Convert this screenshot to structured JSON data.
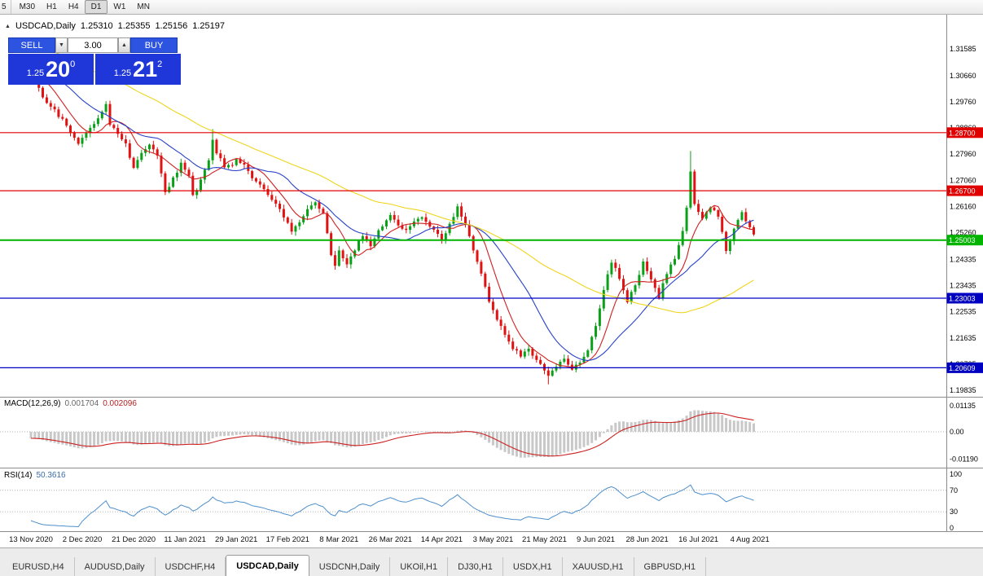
{
  "toolbar": {
    "timeframes": [
      "5",
      "M30",
      "H1",
      "H4",
      "D1",
      "W1",
      "MN"
    ],
    "active": "D1"
  },
  "chart_header": {
    "symbol": "USDCAD,Daily",
    "open": "1.25310",
    "high": "1.25355",
    "low": "1.25156",
    "close": "1.25197"
  },
  "one_click": {
    "sell_label": "SELL",
    "buy_label": "BUY",
    "volume": "3.00",
    "sell": {
      "prefix": "1.25",
      "big": "20",
      "sup": "0"
    },
    "buy": {
      "prefix": "1.25",
      "big": "21",
      "sup": "2"
    }
  },
  "icons": {
    "volume_down": "▼",
    "volume_up": "▲",
    "collapse_arrow": "▲"
  },
  "price_axis": {
    "ticks": [
      {
        "label": "1.31585",
        "value": 1.31585
      },
      {
        "label": "1.30660",
        "value": 1.3066
      },
      {
        "label": "1.29760",
        "value": 1.2976
      },
      {
        "label": "1.28860",
        "value": 1.2886
      },
      {
        "label": "1.27960",
        "value": 1.2796
      },
      {
        "label": "1.27060",
        "value": 1.2706
      },
      {
        "label": "1.26160",
        "value": 1.2616
      },
      {
        "label": "1.25260",
        "value": 1.2526
      },
      {
        "label": "1.24335",
        "value": 1.24335
      },
      {
        "label": "1.23435",
        "value": 1.23435
      },
      {
        "label": "1.22535",
        "value": 1.22535
      },
      {
        "label": "1.21635",
        "value": 1.21635
      },
      {
        "label": "1.20735",
        "value": 1.20735
      },
      {
        "label": "1.19835",
        "value": 1.19835
      }
    ]
  },
  "levels": [
    {
      "label": "1.28700",
      "value": 1.287,
      "color": "#e00000",
      "width": 1.2
    },
    {
      "label": "1.26700",
      "value": 1.267,
      "color": "#e00000",
      "width": 1.2
    },
    {
      "label": "1.25003",
      "value": 1.25003,
      "color": "#00b400",
      "width": 2
    },
    {
      "label": "1.23003",
      "value": 1.23003,
      "color": "#0000c0",
      "width": 1.2
    },
    {
      "label": "1.20609",
      "value": 1.20609,
      "color": "#0000c0",
      "width": 1.2
    }
  ],
  "indicators": {
    "macd": {
      "name": "MACD(12,26,9)",
      "value_main": "0.001704",
      "value_signal": "0.002096",
      "axis_labels": [
        "0.01135",
        "0.00",
        "-0.01190"
      ],
      "fast": 12,
      "slow": 26,
      "signal": 9,
      "histogram_color": "#c8c8c8",
      "signal_color": "#cc2222"
    },
    "rsi": {
      "name": "RSI(14)",
      "value": "50.3616",
      "period": 14,
      "axis_labels": [
        "100",
        "70",
        "30",
        "0"
      ],
      "levels": [
        70,
        30
      ],
      "line_color": "#4d8fcc"
    }
  },
  "chart_data": {
    "type": "candlestick",
    "symbol": "USDCAD",
    "timeframe": "Daily",
    "bars": 184,
    "y_range": [
      1.1961,
      1.3276
    ],
    "last_ohlc": {
      "open": 1.2531,
      "high": 1.25355,
      "low": 1.25156,
      "close": 1.25197
    },
    "up_color": "#0aa018",
    "down_color": "#e11212",
    "price_anchors": [
      [
        0,
        1.307
      ],
      [
        2,
        1.302
      ],
      [
        4,
        1.2975
      ],
      [
        6,
        1.2945
      ],
      [
        8,
        1.2915
      ],
      [
        10,
        1.2865
      ],
      [
        12,
        1.2835
      ],
      [
        14,
        1.287
      ],
      [
        16,
        1.2905
      ],
      [
        18,
        1.2945
      ],
      [
        19,
        1.2965
      ],
      [
        20,
        1.29
      ],
      [
        22,
        1.2865
      ],
      [
        24,
        1.283
      ],
      [
        26,
        1.275
      ],
      [
        28,
        1.2795
      ],
      [
        30,
        1.283
      ],
      [
        32,
        1.279
      ],
      [
        34,
        1.266
      ],
      [
        36,
        1.2715
      ],
      [
        38,
        1.276
      ],
      [
        40,
        1.272
      ],
      [
        41,
        1.265
      ],
      [
        43,
        1.2705
      ],
      [
        45,
        1.277
      ],
      [
        46,
        1.285
      ],
      [
        47,
        1.2805
      ],
      [
        49,
        1.275
      ],
      [
        51,
        1.2765
      ],
      [
        52,
        1.2785
      ],
      [
        54,
        1.2755
      ],
      [
        56,
        1.272
      ],
      [
        58,
        1.269
      ],
      [
        60,
        1.2655
      ],
      [
        62,
        1.262
      ],
      [
        64,
        1.2585
      ],
      [
        66,
        1.253
      ],
      [
        68,
        1.256
      ],
      [
        70,
        1.26
      ],
      [
        72,
        1.263
      ],
      [
        74,
        1.2595
      ],
      [
        75,
        1.252
      ],
      [
        76,
        1.245
      ],
      [
        77,
        1.2405
      ],
      [
        78,
        1.246
      ],
      [
        80,
        1.242
      ],
      [
        82,
        1.2465
      ],
      [
        84,
        1.252
      ],
      [
        86,
        1.2485
      ],
      [
        88,
        1.253
      ],
      [
        91,
        1.258
      ],
      [
        93,
        1.2555
      ],
      [
        95,
        1.253
      ],
      [
        97,
        1.256
      ],
      [
        99,
        1.2585
      ],
      [
        101,
        1.2545
      ],
      [
        104,
        1.25
      ],
      [
        106,
        1.2555
      ],
      [
        108,
        1.261
      ],
      [
        110,
        1.2555
      ],
      [
        112,
        1.2465
      ],
      [
        114,
        1.238
      ],
      [
        116,
        1.229
      ],
      [
        118,
        1.223
      ],
      [
        120,
        1.218
      ],
      [
        122,
        1.213
      ],
      [
        124,
        1.21
      ],
      [
        126,
        1.2125
      ],
      [
        128,
        1.2085
      ],
      [
        130,
        1.2055
      ],
      [
        131,
        1.203
      ],
      [
        132,
        1.2045
      ],
      [
        133,
        1.2065
      ],
      [
        135,
        1.209
      ],
      [
        137,
        1.2055
      ],
      [
        139,
        1.2075
      ],
      [
        141,
        1.212
      ],
      [
        143,
        1.22
      ],
      [
        145,
        1.233
      ],
      [
        147,
        1.2425
      ],
      [
        149,
        1.237
      ],
      [
        151,
        1.229
      ],
      [
        153,
        1.234
      ],
      [
        155,
        1.242
      ],
      [
        157,
        1.236
      ],
      [
        159,
        1.23
      ],
      [
        161,
        1.239
      ],
      [
        163,
        1.244
      ],
      [
        165,
        1.253
      ],
      [
        166,
        1.261
      ],
      [
        167,
        1.274
      ],
      [
        168,
        1.2625
      ],
      [
        170,
        1.2575
      ],
      [
        172,
        1.2615
      ],
      [
        174,
        1.258
      ],
      [
        176,
        1.2465
      ],
      [
        178,
        1.254
      ],
      [
        180,
        1.259
      ],
      [
        181,
        1.257
      ],
      [
        183,
        1.252
      ]
    ],
    "wick_overrides": [
      {
        "idx": 46,
        "high": 1.2882
      },
      {
        "idx": 131,
        "low": 1.2004
      },
      {
        "idx": 167,
        "high": 1.2807
      },
      {
        "idx": 183,
        "close": 1.25197
      }
    ],
    "moving_averages": [
      {
        "period": 8,
        "color": "#d02020"
      },
      {
        "period": 20,
        "color": "#2742c8"
      },
      {
        "period": 55,
        "color": "#efd51d"
      }
    ],
    "x_labels": [
      {
        "idx": 0,
        "label": "13 Nov 2020"
      },
      {
        "idx": 13,
        "label": "2 Dec 2020"
      },
      {
        "idx": 26,
        "label": "21 Dec 2020"
      },
      {
        "idx": 39,
        "label": "11 Jan 2021"
      },
      {
        "idx": 52,
        "label": "29 Jan 2021"
      },
      {
        "idx": 65,
        "label": "17 Feb 2021"
      },
      {
        "idx": 78,
        "label": "8 Mar 2021"
      },
      {
        "idx": 91,
        "label": "26 Mar 2021"
      },
      {
        "idx": 104,
        "label": "14 Apr 2021"
      },
      {
        "idx": 117,
        "label": "3 May 2021"
      },
      {
        "idx": 130,
        "label": "21 May 2021"
      },
      {
        "idx": 143,
        "label": "9 Jun 2021"
      },
      {
        "idx": 156,
        "label": "28 Jun 2021"
      },
      {
        "idx": 169,
        "label": "16 Jul 2021"
      },
      {
        "idx": 182,
        "label": "4 Aug 2021"
      }
    ]
  },
  "tabs": {
    "items": [
      "EURUSD,H4",
      "AUDUSD,Daily",
      "USDCHF,H4",
      "USDCAD,Daily",
      "USDCNH,Daily",
      "UKOil,H1",
      "DJ30,H1",
      "USDX,H1",
      "XAUUSD,H1",
      "GBPUSD,H1"
    ],
    "active": "USDCAD,Daily"
  },
  "colors": {
    "background": "#ffffff",
    "separator": "#8c8c8c",
    "axis_text": "#000000",
    "oct_button_blue": "#2d54e0",
    "oct_price_blue": "#1f36d9"
  }
}
